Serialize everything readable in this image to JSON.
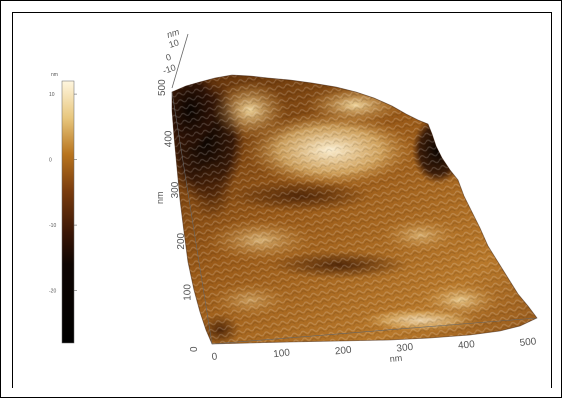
{
  "colorbar": {
    "unit": "nm",
    "ticks": [
      {
        "value": 10,
        "label": "10"
      },
      {
        "value": 0,
        "label": "0"
      },
      {
        "value": -10,
        "label": "-10"
      },
      {
        "value": -20,
        "label": "-20"
      }
    ],
    "range": [
      -28,
      12
    ],
    "colors": [
      "#000000",
      "#3a1606",
      "#7a3c0e",
      "#b8741e",
      "#e8c77e",
      "#fff6df"
    ]
  },
  "axes": {
    "z": {
      "unit": "nm",
      "ticks": [
        "10",
        "0",
        "-10"
      ]
    },
    "y": {
      "unit": "nm",
      "ticks": [
        "0",
        "100",
        "200",
        "300",
        "400",
        "500"
      ]
    },
    "x": {
      "unit": "nm",
      "ticks": [
        "0",
        "100",
        "200",
        "300",
        "400",
        "500"
      ]
    }
  },
  "surface_colors": {
    "dark": "#1a0a02",
    "mid": "#8a4a14",
    "light": "#d9a860",
    "bright": "#f6e6c0"
  }
}
